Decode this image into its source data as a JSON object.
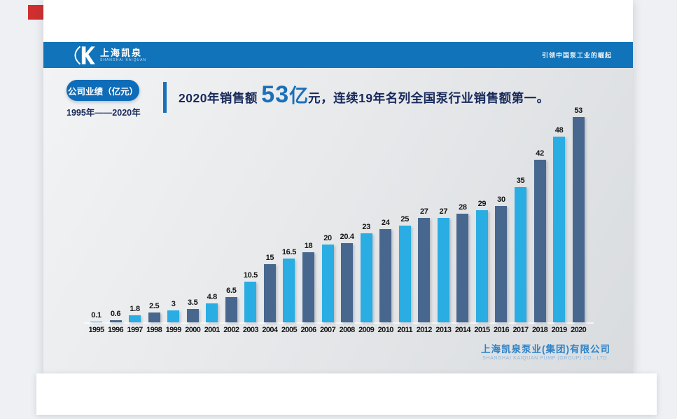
{
  "page": {
    "red_marker_color": "#d02f2f",
    "background_color": "#eef0f3"
  },
  "header": {
    "band_color": "#1173b9",
    "logo_cn": "上海凯泉",
    "logo_en": "SHANGHAI KAIQUAN",
    "slogan": "引领中国泵工业的崛起"
  },
  "intro": {
    "badge_label": "公司业绩（亿元）",
    "badge_color": "#0e6cb8",
    "period": "1995年——2020年",
    "period_color": "#18295a"
  },
  "headline": {
    "prefix": "2020年销售额 ",
    "big_number": "53",
    "big_unit": "亿",
    "suffix": "元，连续19年名列全国泵行业销售额第一。",
    "text_color": "#18295a",
    "highlight_color": "#1a70b9"
  },
  "chart_data": {
    "type": "bar",
    "title": "公司业绩（亿元）",
    "xlabel": "",
    "ylabel": "",
    "ylim": [
      0,
      53
    ],
    "grid": false,
    "legend": false,
    "value_labels_shown": true,
    "categories": [
      "1995",
      "1996",
      "1997",
      "1998",
      "1999",
      "2000",
      "2001",
      "2002",
      "2003",
      "2004",
      "2005",
      "2006",
      "2007",
      "2008",
      "2009",
      "2010",
      "2011",
      "2012",
      "2013",
      "2014",
      "2015",
      "2016",
      "2017",
      "2018",
      "2019",
      "2020"
    ],
    "values": [
      0.1,
      0.6,
      1.8,
      2.5,
      3,
      3.5,
      4.8,
      6.5,
      10.5,
      15,
      16.5,
      18,
      20,
      20.4,
      23,
      24,
      25,
      27,
      27,
      28,
      29,
      30,
      35,
      42,
      48,
      53
    ],
    "bar_colors": [
      "#29ade3",
      "#48678f"
    ],
    "bar_color_rule": "alternating: odd years cyan #29ade3, even years slate #48678f"
  },
  "footer": {
    "company_cn": "上海凯泉泵业(集团)有限公司",
    "company_en": "SHANGHAI KAIQUAN PUMP (GROUP) CO., LTD.",
    "cn_color": "#2e82c6",
    "en_color": "#8fb6da"
  }
}
